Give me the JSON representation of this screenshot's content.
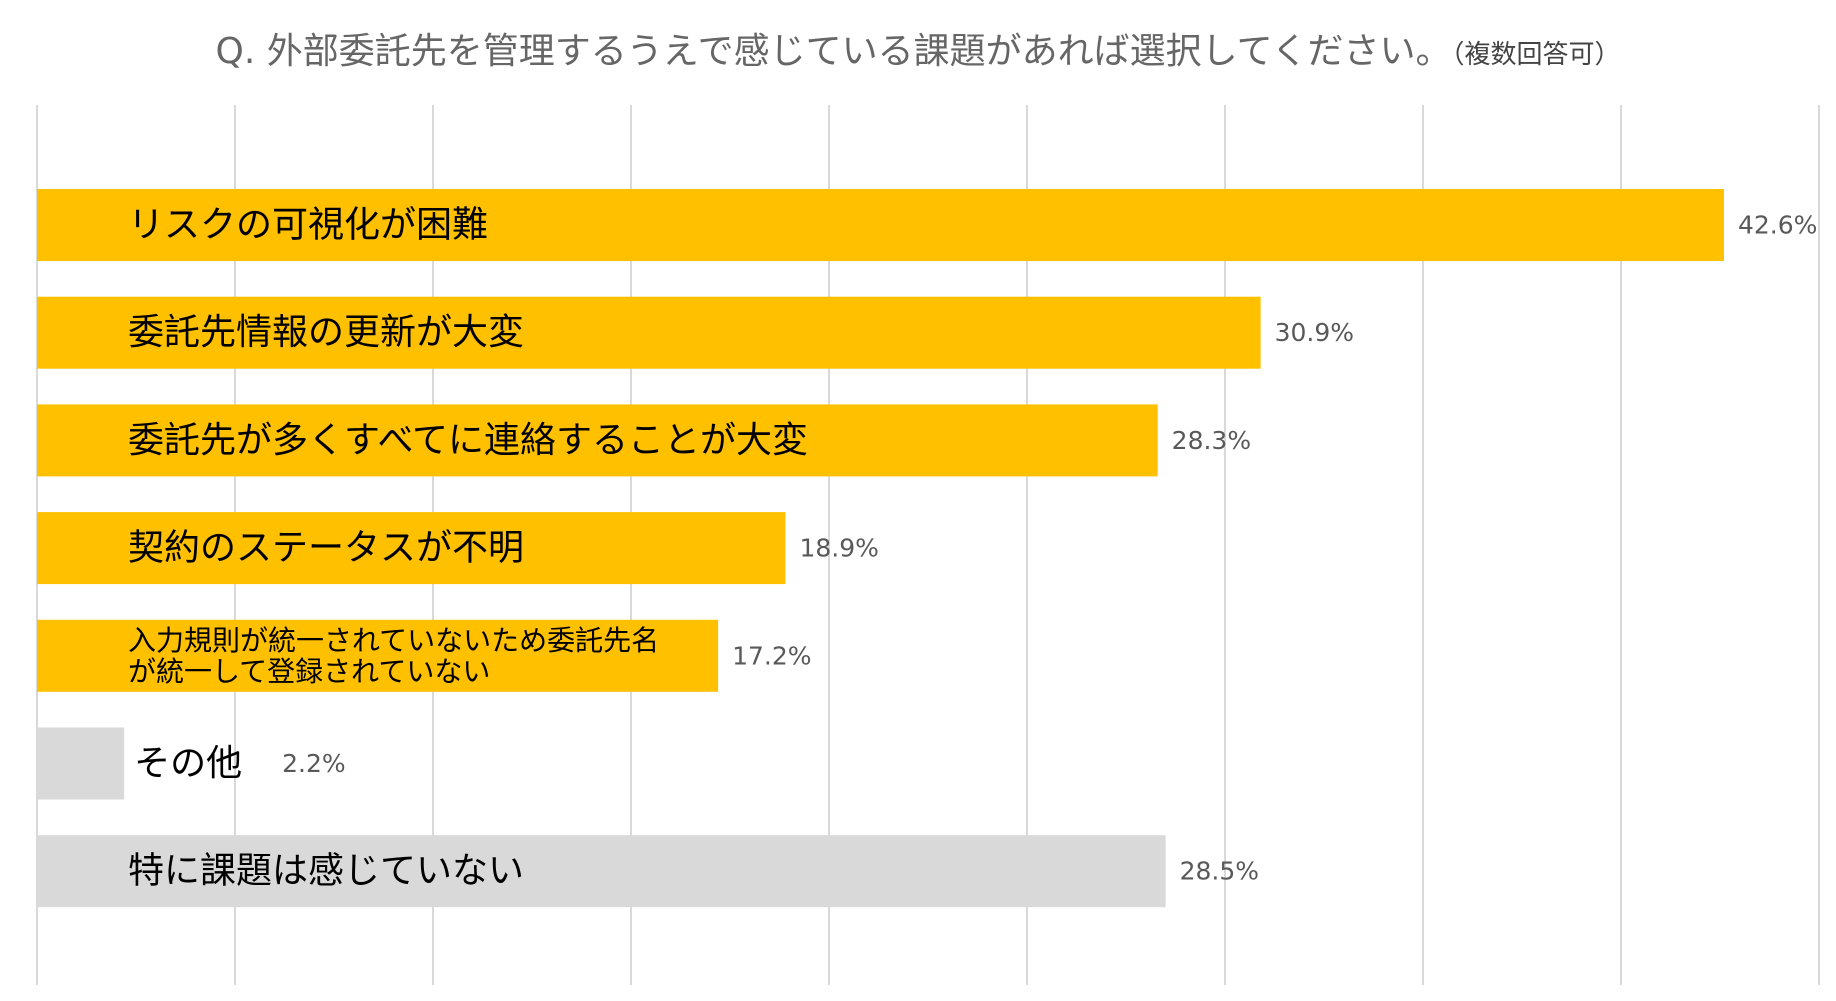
{
  "chart_data": {
    "type": "bar",
    "orientation": "horizontal",
    "title": "Q. 外部委託先を管理するうえで感じている課題があれば選択してください。",
    "subtitle": "（複数回答可）",
    "xlabel": "",
    "ylabel": "",
    "xlim": [
      0,
      45
    ],
    "grid": true,
    "legend": "none",
    "categories": [
      "リスクの可視化が困難",
      "委託先情報の更新が大変",
      "委託先が多くすべてに連絡することが大変",
      "契約のステータスが不明",
      "入力規則が統一されていないため委託先名\nが統一して登録されていない",
      "その他",
      "特に課題は感じていない"
    ],
    "values": [
      42.6,
      30.9,
      28.3,
      18.9,
      17.2,
      2.2,
      28.5
    ],
    "value_labels": [
      "42.6%",
      "30.9%",
      "28.3%",
      "18.9%",
      "17.2%",
      "2.2%",
      "28.5%"
    ],
    "bar_colors": [
      "#FFC000",
      "#FFC000",
      "#FFC000",
      "#FFC000",
      "#FFC000",
      "#D9D9D9",
      "#D9D9D9"
    ],
    "gridline_color": "#D9D9D9"
  }
}
